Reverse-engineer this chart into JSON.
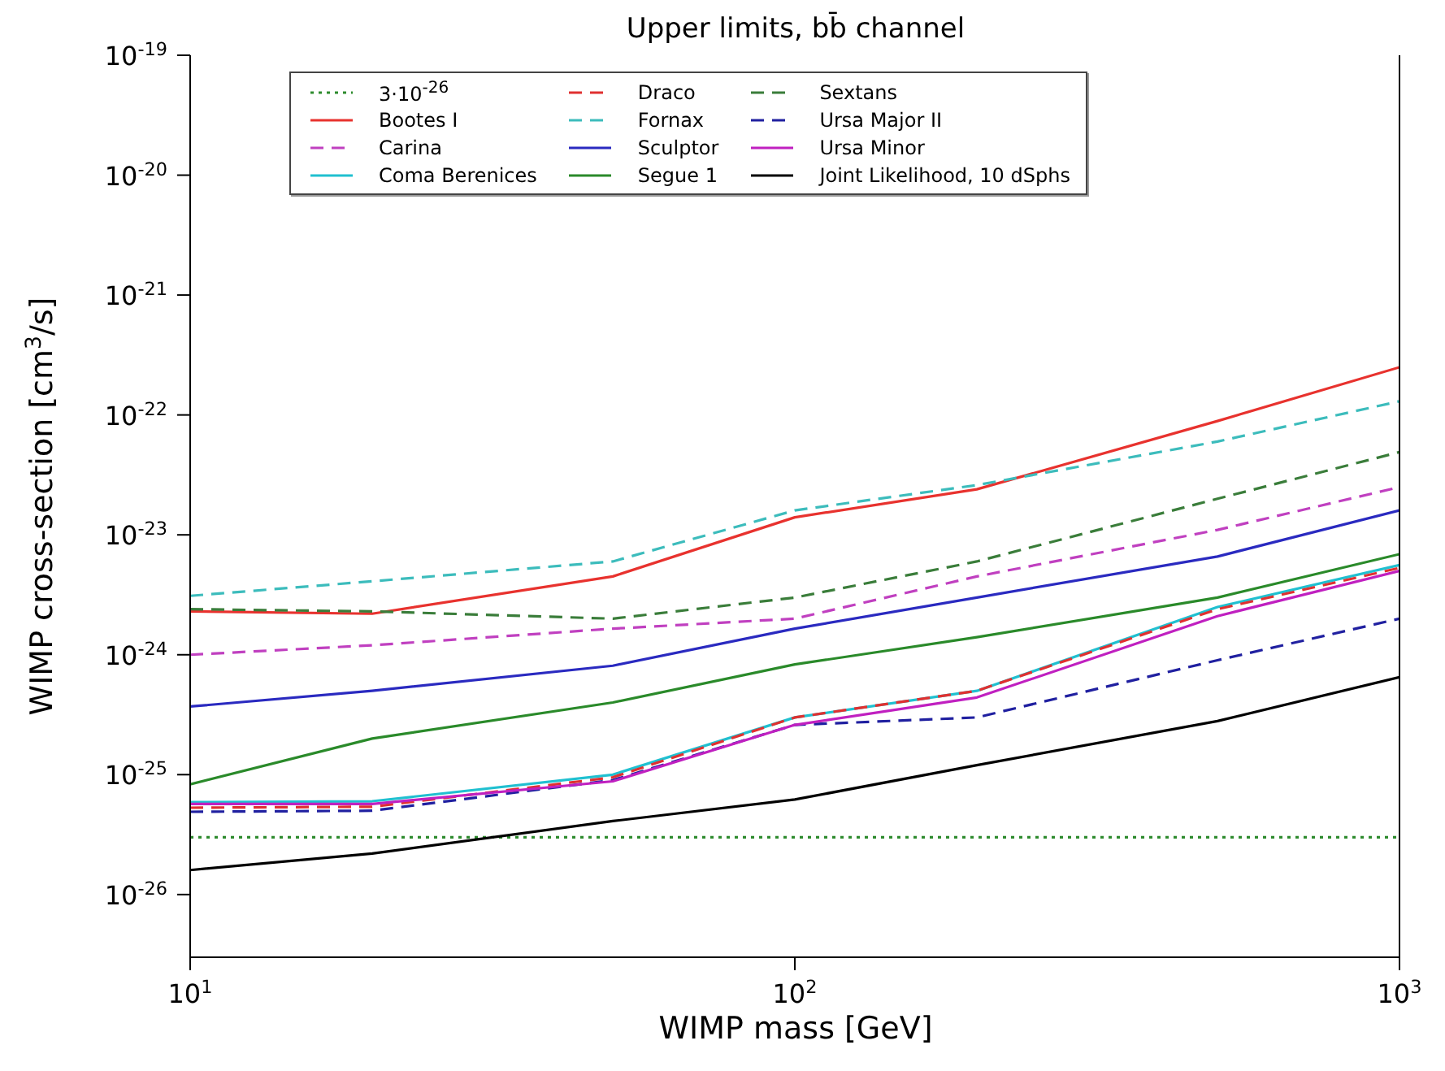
{
  "chart_data": {
    "type": "line",
    "title": "Upper limits, bb̄ channel",
    "xlabel": "WIMP mass [GeV]",
    "ylabel": "WIMP cross-section [cm$^{3}$/s]",
    "log": "xy",
    "legend": "top",
    "x": [
      10,
      20,
      50,
      100,
      200,
      500,
      1000
    ],
    "xlim": [
      10,
      1000
    ],
    "xticks": [
      {
        "value": 10,
        "label": "10$^{1}$"
      },
      {
        "value": 100,
        "label": "10$^{2}$"
      },
      {
        "value": 1000,
        "label": "10$^{3}$"
      }
    ],
    "ylim": [
      3e-27,
      1e-19
    ],
    "yticks": [
      {
        "value": 1e-26,
        "label": "10$^{-26}$"
      },
      {
        "value": 1e-25,
        "label": "10$^{-25}$"
      },
      {
        "value": 1e-24,
        "label": "10$^{-24}$"
      },
      {
        "value": 1e-23,
        "label": "10$^{-23}$"
      },
      {
        "value": 1e-22,
        "label": "10$^{-22}$"
      },
      {
        "value": 1e-21,
        "label": "10$^{-21}$"
      },
      {
        "value": 1e-20,
        "label": "10$^{-20}$"
      },
      {
        "value": 1e-19,
        "label": "10$^{-19}$"
      }
    ],
    "series": [
      {
        "name": "3·10$^{-26}$",
        "color": "#2e8b2e",
        "line_style": "dotted",
        "x": [
          10,
          1000
        ],
        "values": [
          3e-26,
          3e-26
        ]
      },
      {
        "name": "Bootes I",
        "color": "#e8322e",
        "line_style": "solid",
        "values": [
          2.3e-24,
          2.2e-24,
          4.5e-24,
          1.4e-23,
          2.4e-23,
          8.9e-23,
          2.5e-22
        ]
      },
      {
        "name": "Carina",
        "color": "#c040c0",
        "line_style": "dashed",
        "values": [
          1e-24,
          1.2e-24,
          1.65e-24,
          2e-24,
          4.5e-24,
          1.1e-23,
          2.5e-23
        ]
      },
      {
        "name": "Coma Berenices",
        "color": "#20c0d0",
        "line_style": "solid",
        "values": [
          5.9e-26,
          6e-26,
          1e-25,
          3e-25,
          5e-25,
          2.5e-24,
          5.6e-24
        ]
      },
      {
        "name": "Draco",
        "color": "#e03030",
        "line_style": "dashed",
        "values": [
          5.3e-26,
          5.4e-26,
          9.5e-26,
          3e-25,
          5e-25,
          2.4e-24,
          5.3e-24
        ]
      },
      {
        "name": "Fornax",
        "color": "#3cbcbc",
        "line_style": "dashed",
        "values": [
          3.1e-24,
          4.1e-24,
          6e-24,
          1.6e-23,
          2.6e-23,
          6e-23,
          1.3e-22
        ]
      },
      {
        "name": "Sculptor",
        "color": "#2a2ac0",
        "line_style": "solid",
        "values": [
          3.7e-25,
          5e-25,
          8.1e-25,
          1.65e-24,
          3e-24,
          6.6e-24,
          1.6e-23
        ]
      },
      {
        "name": "Segue 1",
        "color": "#2a8a2a",
        "line_style": "solid",
        "values": [
          8.3e-26,
          2e-25,
          4e-25,
          8.3e-25,
          1.4e-24,
          3e-24,
          6.9e-24
        ]
      },
      {
        "name": "Sextans",
        "color": "#3a7d3a",
        "line_style": "dashed",
        "values": [
          2.4e-24,
          2.3e-24,
          2e-24,
          3e-24,
          6e-24,
          2e-23,
          4.9e-23
        ]
      },
      {
        "name": "Ursa Major II",
        "color": "#2020a0",
        "line_style": "dashed",
        "values": [
          4.9e-26,
          5e-26,
          9e-26,
          2.6e-25,
          3e-25,
          9e-25,
          2e-24
        ]
      },
      {
        "name": "Ursa Minor",
        "color": "#c020c0",
        "line_style": "solid",
        "values": [
          5.7e-26,
          5.7e-26,
          8.8e-26,
          2.6e-25,
          4.4e-25,
          2.1e-24,
          5e-24
        ]
      },
      {
        "name": "Joint Likelihood, 10 dSphs",
        "color": "#000000",
        "line_style": "solid",
        "values": [
          1.6e-26,
          2.2e-26,
          4.1e-26,
          6.2e-26,
          1.2e-25,
          2.8e-25,
          6.5e-25
        ]
      }
    ]
  }
}
